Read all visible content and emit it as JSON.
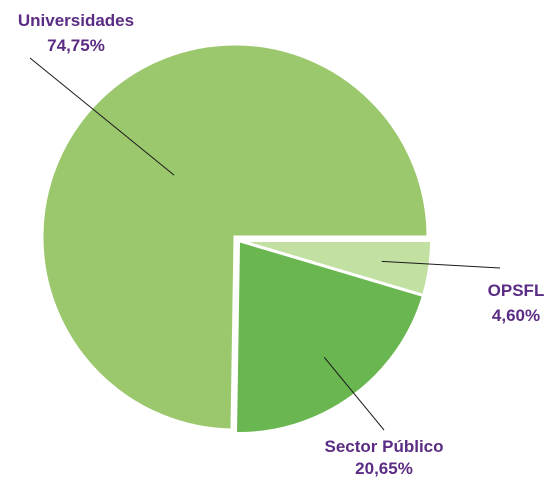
{
  "chart_data": {
    "type": "pie",
    "slices": [
      {
        "label": "OPSFL",
        "value": 4.6,
        "value_label": "4,60%",
        "color": "#c3e0a3",
        "exploded": true
      },
      {
        "label": "Sector Público",
        "value": 20.65,
        "value_label": "20,65%",
        "color": "#6ab650",
        "exploded": true
      },
      {
        "label": "Universidades",
        "value": 74.75,
        "value_label": "74,75%",
        "color": "#9bc76d",
        "exploded": false
      }
    ],
    "label_color": "#5b2c83",
    "leader_color": "#1a1a1a",
    "legend": "none"
  }
}
